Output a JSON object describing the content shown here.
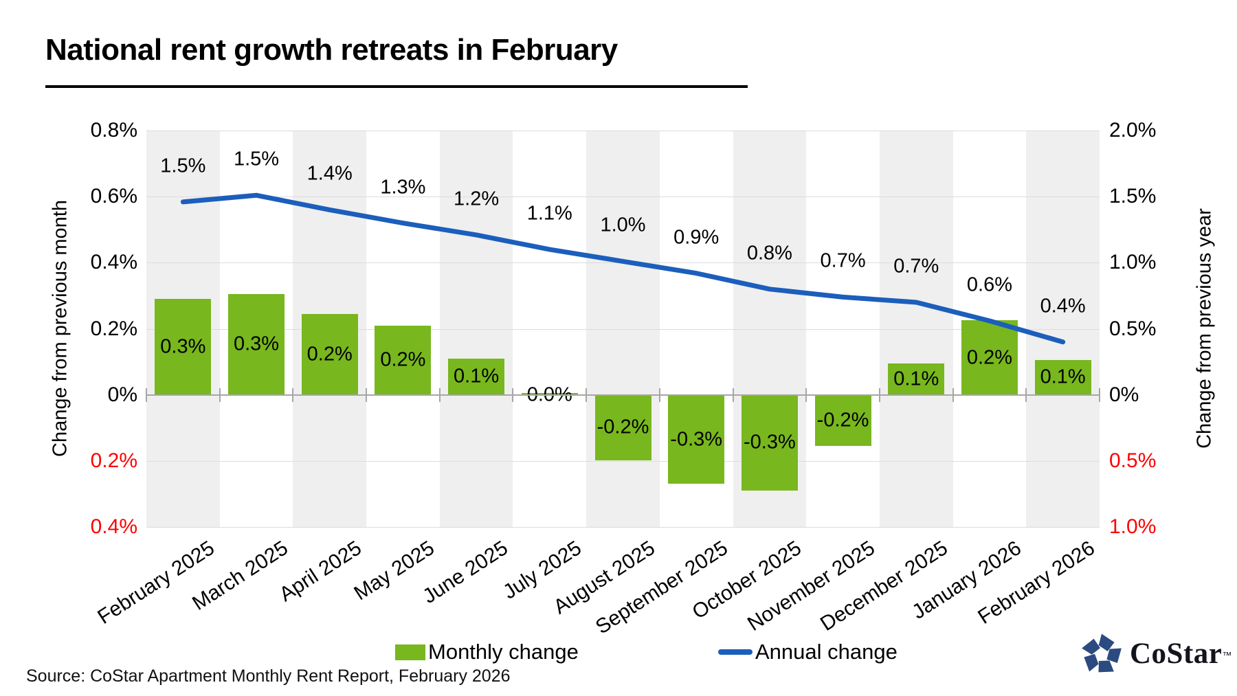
{
  "header": {
    "title": "National rent growth retreats in February"
  },
  "chart_data": {
    "type": "bar+line combo",
    "categories": [
      "February 2025",
      "March 2025",
      "April 2025",
      "May 2025",
      "June 2025",
      "July 2025",
      "August 2025",
      "September 2025",
      "October 2025",
      "November 2025",
      "December 2025",
      "January 2026",
      "February 2026"
    ],
    "series": [
      {
        "name": "Monthly change",
        "type": "bar",
        "axis": "left",
        "color": "#78b71e",
        "values": [
          0.3,
          0.3,
          0.2,
          0.2,
          0.1,
          0.0,
          -0.2,
          -0.3,
          -0.3,
          -0.2,
          0.1,
          0.2,
          0.1
        ],
        "labels": [
          "0.3%",
          "0.3%",
          "0.2%",
          "0.2%",
          "0.1%",
          "0.0%",
          "-0.2%",
          "-0.3%",
          "-0.3%",
          "-0.2%",
          "0.1%",
          "0.2%",
          "0.1%"
        ],
        "plot_values": [
          0.29,
          0.305,
          0.245,
          0.21,
          0.11,
          0.005,
          -0.198,
          -0.27,
          -0.29,
          -0.155,
          0.095,
          0.225,
          0.105
        ]
      },
      {
        "name": "Annual change",
        "type": "line",
        "axis": "right",
        "color": "#1b5ebc",
        "values": [
          1.5,
          1.5,
          1.4,
          1.3,
          1.2,
          1.1,
          1.0,
          0.9,
          0.8,
          0.7,
          0.7,
          0.6,
          0.4
        ],
        "labels": [
          "1.5%",
          "1.5%",
          "1.4%",
          "1.3%",
          "1.2%",
          "1.1%",
          "1.0%",
          "0.9%",
          "0.8%",
          "0.7%",
          "0.7%",
          "0.6%",
          "0.4%"
        ],
        "plot_values": [
          1.46,
          1.51,
          1.4,
          1.3,
          1.21,
          1.1,
          1.01,
          0.92,
          0.8,
          0.74,
          0.7,
          0.56,
          0.4
        ]
      }
    ],
    "left_axis": {
      "title": "Change from previous month",
      "range": [
        -0.4,
        0.8
      ],
      "ticks": [
        {
          "label": "0.8%",
          "value": 0.8,
          "color": "#000000"
        },
        {
          "label": "0.6%",
          "value": 0.6,
          "color": "#000000"
        },
        {
          "label": "0.4%",
          "value": 0.4,
          "color": "#000000"
        },
        {
          "label": "0.2%",
          "value": 0.2,
          "color": "#000000"
        },
        {
          "label": "0%",
          "value": 0.0,
          "color": "#000000"
        },
        {
          "label": "0.2%",
          "value": -0.2,
          "color": "#ff0000"
        },
        {
          "label": "0.4%",
          "value": -0.4,
          "color": "#ff0000"
        }
      ]
    },
    "right_axis": {
      "title": "Change from previous year",
      "range": [
        -1.0,
        2.0
      ],
      "ticks": [
        {
          "label": "2.0%",
          "value": 2.0,
          "color": "#000000"
        },
        {
          "label": "1.5%",
          "value": 1.5,
          "color": "#000000"
        },
        {
          "label": "1.0%",
          "value": 1.0,
          "color": "#000000"
        },
        {
          "label": "0.5%",
          "value": 0.5,
          "color": "#000000"
        },
        {
          "label": "0%",
          "value": 0.0,
          "color": "#000000"
        },
        {
          "label": "0.5%",
          "value": -0.5,
          "color": "#ff0000"
        },
        {
          "label": "1.0%",
          "value": -1.0,
          "color": "#ff0000"
        }
      ]
    },
    "grid": true,
    "legend_position": "bottom",
    "plot_band_color": "#efefef"
  },
  "legend": {
    "monthly": "Monthly change",
    "annual": "Annual change"
  },
  "footer": {
    "source": "Source: CoStar Apartment Monthly Rent Report, February 2026"
  },
  "logo": {
    "text": "CoStar",
    "tm": "™"
  },
  "colors": {
    "bar": "#78b71e",
    "line": "#1b5ebc",
    "negative_tick": "#ff0000",
    "band": "#efefef",
    "gridline": "#dcdcdc",
    "axis": "#a6a6a6",
    "logo_navy": "#2b4a80"
  }
}
